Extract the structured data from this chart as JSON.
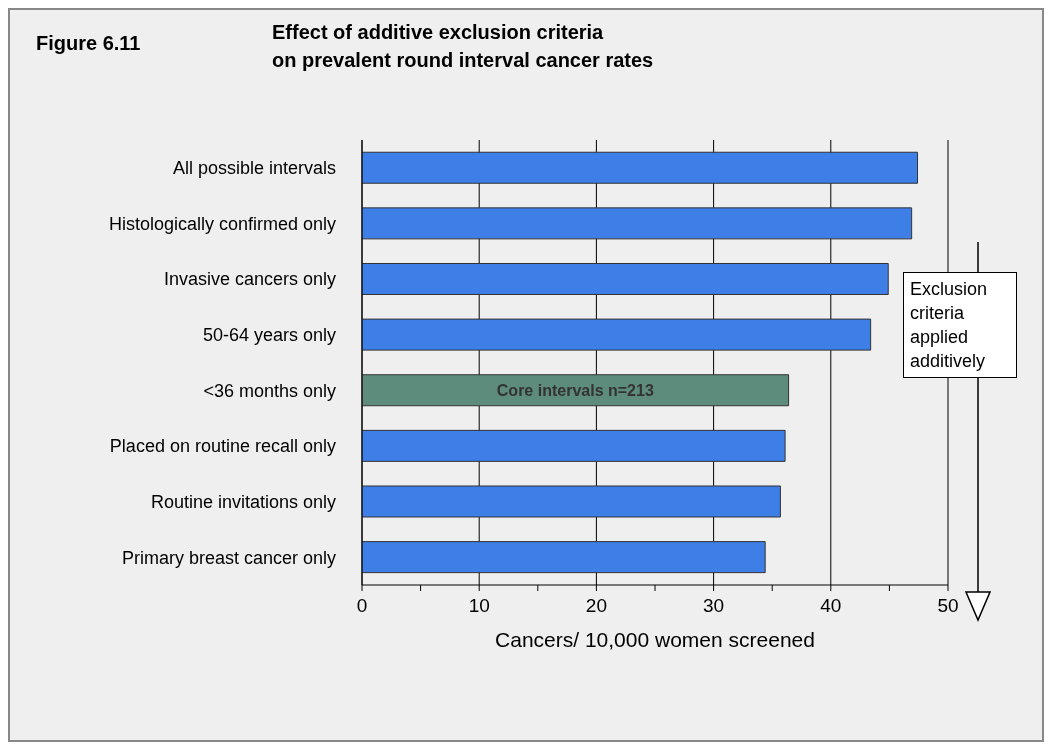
{
  "chart_data": {
    "type": "bar",
    "orientation": "horizontal",
    "title": "Effect of additive exclusion criteria\non prevalent round interval cancer rates",
    "xlabel": "Cancers/ 10,000 women screened",
    "categories": [
      "All possible intervals",
      "Histologically confirmed only",
      "Invasive cancers only",
      "50-64 years only",
      "<36 months only",
      "Placed on routine recall only",
      "Routine invitations only",
      "Primary breast cancer only"
    ],
    "values": [
      47.4,
      46.9,
      44.9,
      43.4,
      36.4,
      36.1,
      35.7,
      34.4
    ],
    "colors": [
      "#3d7fe6",
      "#3d7fe6",
      "#3d7fe6",
      "#3d7fe6",
      "#5e8c7c",
      "#3d7fe6",
      "#3d7fe6",
      "#3d7fe6"
    ],
    "xlim": [
      0,
      50
    ],
    "xticks": [
      0,
      {
        "value": 5,
        "label": null
      },
      10,
      {
        "value": 15,
        "label": null
      },
      20,
      {
        "value": 25,
        "label": null
      },
      30,
      {
        "value": 35,
        "label": null
      },
      40,
      {
        "value": 45,
        "label": null
      },
      50
    ],
    "grid": "x",
    "annotations": [
      "Figure 6.11",
      "Core intervals n=213",
      "Exclusion criteria applied additively"
    ]
  }
}
